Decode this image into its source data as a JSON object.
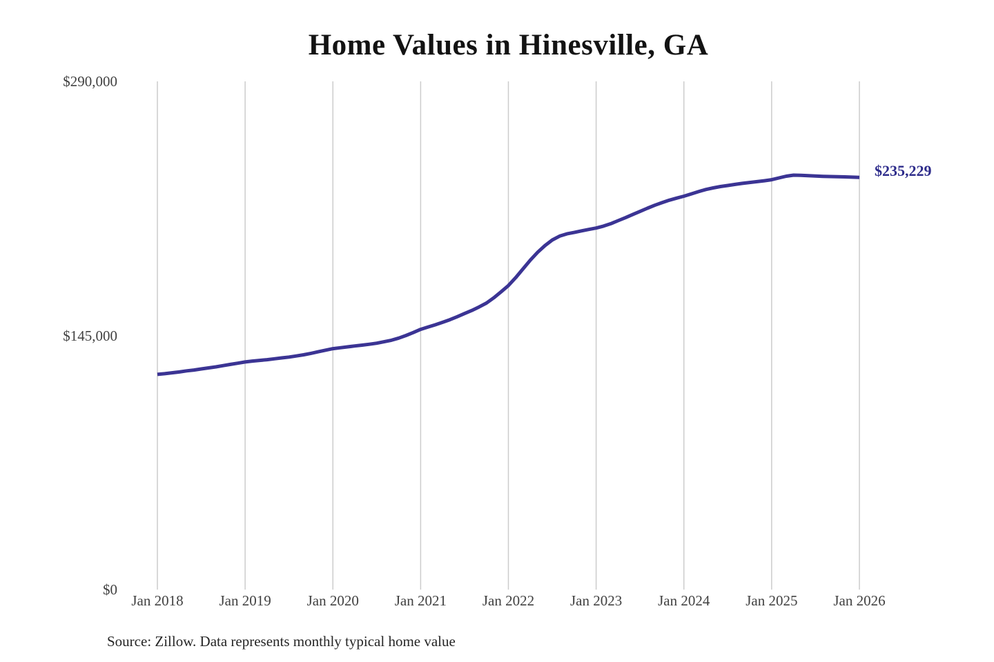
{
  "title": "Home Values in Hinesville, GA",
  "end_label": "$235,229",
  "source_note": "Source: Zillow. Data represents monthly typical home value",
  "colors": {
    "background": "#ffffff",
    "line": "#3b3494",
    "end_label": "#2e2c8b",
    "grid": "#cccccc",
    "title": "#131313",
    "axis_text": "#414141",
    "source_text": "#262626"
  },
  "chart_data": {
    "type": "line",
    "title": "Home Values in Hinesville, GA",
    "xlabel": "",
    "ylabel": "",
    "x_tick_labels": [
      "Jan 2018",
      "Jan 2019",
      "Jan 2020",
      "Jan 2021",
      "Jan 2022",
      "Jan 2023",
      "Jan 2024",
      "Jan 2025",
      "Jan 2026"
    ],
    "y_tick_labels": [
      "$0",
      "$145,000",
      "$290,000"
    ],
    "y_ticks": [
      0,
      145000,
      290000
    ],
    "ylim": [
      0,
      290000
    ],
    "grid": "vertical-only",
    "legend": "none",
    "annotation_last_value": "$235,229",
    "series": [
      {
        "name": "Monthly typical home value",
        "x_start": "Jan 2018",
        "x_end": "Jan 2026",
        "interval": "monthly",
        "last_value": 235229,
        "values": [
          122800,
          123200,
          123700,
          124200,
          124800,
          125300,
          125900,
          126500,
          127100,
          127800,
          128500,
          129200,
          129900,
          130400,
          130800,
          131200,
          131700,
          132200,
          132700,
          133300,
          134000,
          134800,
          135700,
          136600,
          137500,
          138000,
          138500,
          139000,
          139500,
          140000,
          140600,
          141400,
          142300,
          143500,
          145000,
          146700,
          148500,
          149800,
          151100,
          152500,
          154000,
          155700,
          157500,
          159300,
          161300,
          163500,
          166500,
          169900,
          173500,
          178000,
          183000,
          188000,
          192500,
          196300,
          199500,
          201700,
          203000,
          203800,
          204700,
          205500,
          206300,
          207400,
          208800,
          210500,
          212200,
          214000,
          215800,
          217600,
          219300,
          220800,
          222200,
          223400,
          224500,
          225800,
          227100,
          228300,
          229200,
          230000,
          230600,
          231200,
          231800,
          232300,
          232800,
          233300,
          233900,
          234900,
          235900,
          236500,
          236400,
          236200,
          236000,
          235800,
          235700,
          235600,
          235500,
          235350,
          235229
        ]
      }
    ]
  }
}
